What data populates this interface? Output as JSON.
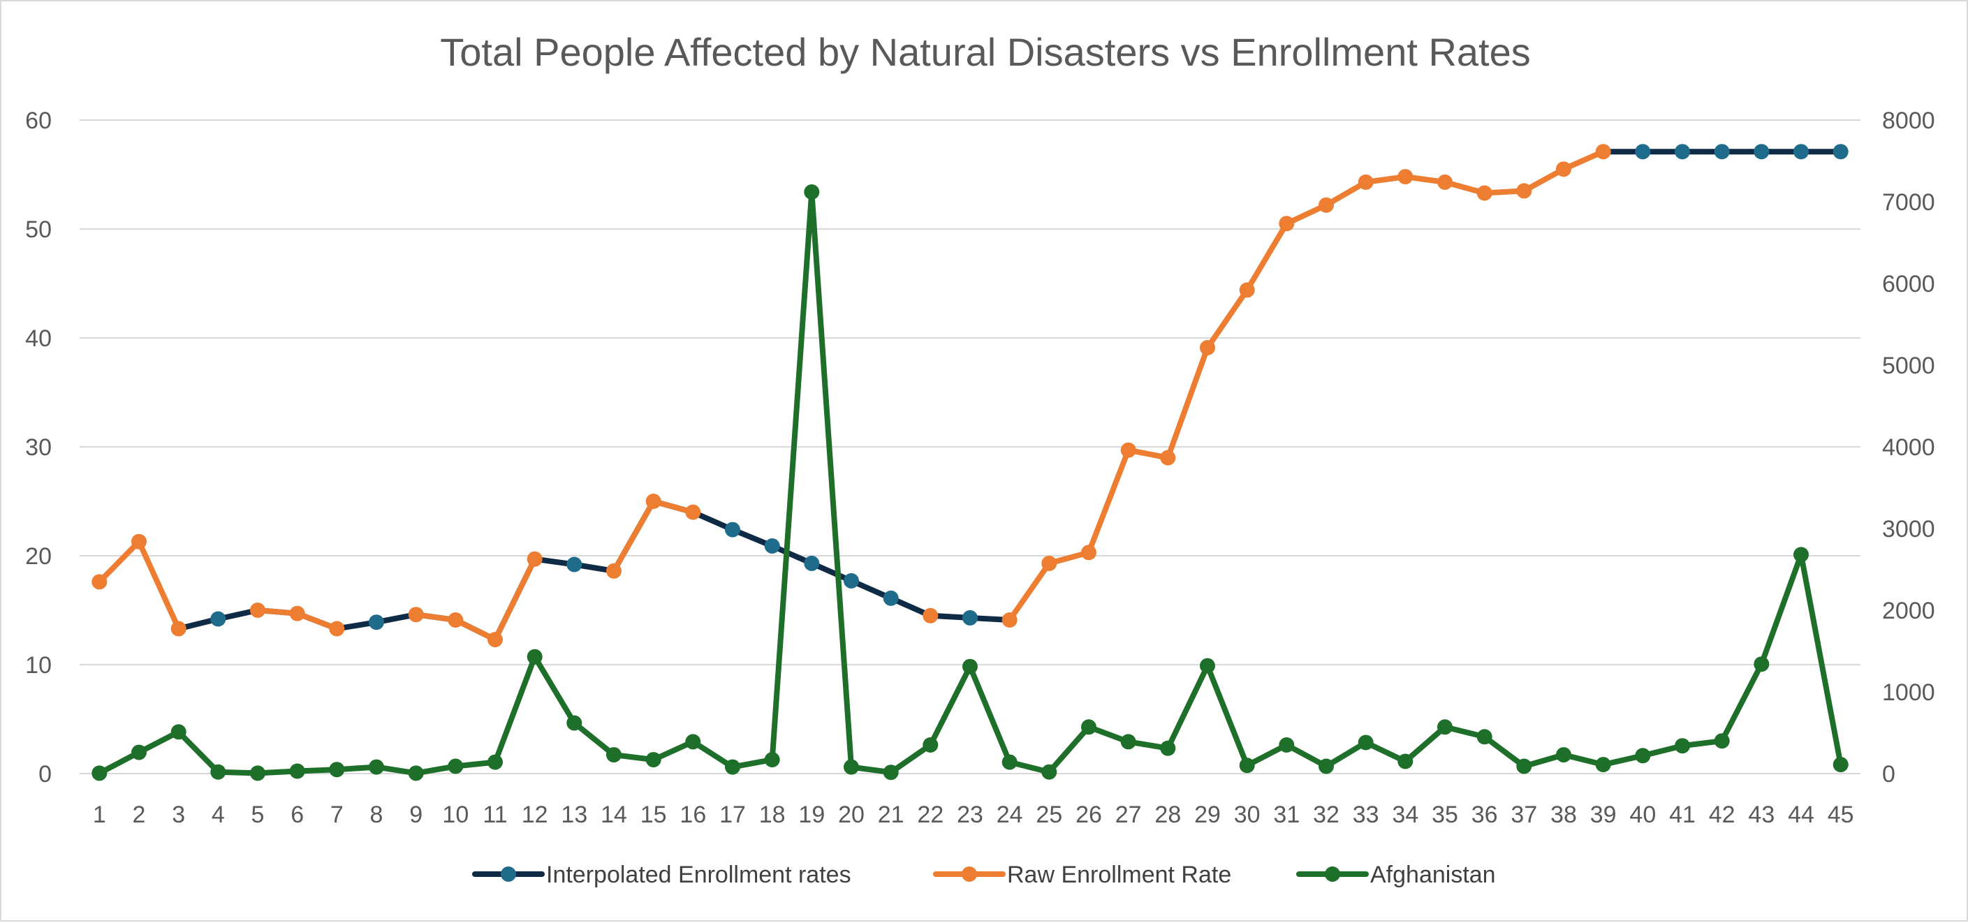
{
  "chart_data": {
    "type": "line",
    "title": "Total People Affected by Natural Disasters vs Enrollment Rates",
    "x": [
      1,
      2,
      3,
      4,
      5,
      6,
      7,
      8,
      9,
      10,
      11,
      12,
      13,
      14,
      15,
      16,
      17,
      18,
      19,
      20,
      21,
      22,
      23,
      24,
      25,
      26,
      27,
      28,
      29,
      30,
      31,
      32,
      33,
      34,
      35,
      36,
      37,
      38,
      39,
      40,
      41,
      42,
      43,
      44,
      45
    ],
    "left_axis": {
      "ylim": [
        0,
        60
      ],
      "ticks": [
        0,
        10,
        20,
        30,
        40,
        50,
        60
      ]
    },
    "right_axis": {
      "ylim": [
        0,
        8000
      ],
      "ticks": [
        0,
        1000,
        2000,
        3000,
        4000,
        5000,
        6000,
        7000,
        8000
      ]
    },
    "grid": true,
    "legend_position": "bottom",
    "series": [
      {
        "name": "Interpolated Enrollment rates",
        "axis": "left",
        "color": "#0f2a44",
        "marker_color": "#1f6b8c",
        "values": [
          null,
          null,
          13.3,
          14.2,
          15.0,
          14.7,
          13.3,
          13.9,
          14.6,
          14.1,
          12.3,
          19.7,
          19.2,
          18.6,
          25.0,
          24.0,
          22.4,
          20.9,
          19.3,
          17.7,
          16.1,
          14.5,
          14.3,
          14.1,
          null,
          null,
          null,
          null,
          null,
          null,
          null,
          null,
          null,
          null,
          null,
          null,
          null,
          null,
          57.1,
          57.1,
          57.1,
          57.1,
          57.1,
          57.1,
          57.1
        ]
      },
      {
        "name": "Raw Enrollment Rate",
        "axis": "left",
        "color": "#ed7d31",
        "segments": [
          {
            "x": [
              1,
              2,
              3
            ],
            "values": [
              17.6,
              21.3,
              13.3
            ]
          },
          {
            "x": [
              5,
              6,
              7
            ],
            "values": [
              15.0,
              14.7,
              13.3
            ]
          },
          {
            "x": [
              9,
              10,
              11,
              12
            ],
            "values": [
              14.6,
              14.1,
              12.3,
              19.7
            ]
          },
          {
            "x": [
              14,
              15,
              16
            ],
            "values": [
              18.6,
              25.0,
              24.0
            ]
          },
          {
            "x": [
              22
            ],
            "values": [
              14.5
            ]
          },
          {
            "x": [
              24,
              25,
              26,
              27,
              28,
              29,
              30,
              31,
              32,
              33,
              34,
              35,
              36,
              37,
              38,
              39
            ],
            "values": [
              14.1,
              19.3,
              20.3,
              29.7,
              29.0,
              39.1,
              44.4,
              50.5,
              52.2,
              54.3,
              54.8,
              54.3,
              53.3,
              53.5,
              55.5,
              57.1
            ]
          }
        ]
      },
      {
        "name": "Afghanistan",
        "axis": "right",
        "color": "#1e6f2a",
        "values": [
          5,
          260,
          510,
          20,
          5,
          30,
          50,
          80,
          5,
          90,
          140,
          1430,
          620,
          230,
          170,
          390,
          80,
          170,
          7120,
          80,
          15,
          350,
          1310,
          140,
          20,
          570,
          390,
          310,
          1320,
          100,
          350,
          90,
          380,
          150,
          570,
          450,
          90,
          230,
          110,
          220,
          340,
          400,
          1340,
          2680,
          110
        ]
      }
    ]
  }
}
